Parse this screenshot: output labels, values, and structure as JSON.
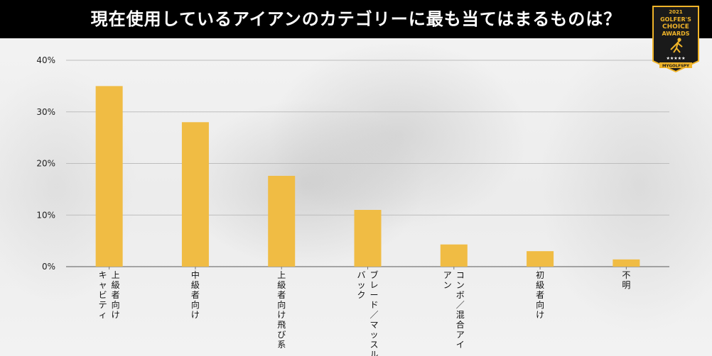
{
  "header": {
    "title": "現在使用しているアイアンのカテゴリーに最も当てはまるものは？"
  },
  "badge": {
    "year": "2021",
    "line1": "GOLFER'S",
    "line2": "CHOICE",
    "line3": "AWARDS",
    "stars": "★★★★★",
    "brand": "MYGOLFSPY",
    "icon": "golfer-trophy-icon",
    "color_bg": "#1a1a1a",
    "color_gold": "#f0b429"
  },
  "chart_data": {
    "type": "bar",
    "categories": [
      [
        "上級者向け",
        "キャビティ"
      ],
      [
        "中級者向け"
      ],
      [
        "上級者向け飛び系"
      ],
      [
        "ブレード／マッスル",
        "バック"
      ],
      [
        "コンボ／混合アイ",
        "アン"
      ],
      [
        "初級者向け"
      ],
      [
        "不明"
      ]
    ],
    "values": [
      35,
      28,
      17.6,
      11,
      4.3,
      3,
      1.4
    ],
    "ylim": [
      0,
      40
    ],
    "yticks": [
      "0%",
      "10%",
      "20%",
      "30%",
      "40%"
    ],
    "ytick_values": [
      0,
      10,
      20,
      30,
      40
    ],
    "grid": true,
    "bar_color": "#f0bc44",
    "title": "",
    "xlabel": "",
    "ylabel": ""
  }
}
